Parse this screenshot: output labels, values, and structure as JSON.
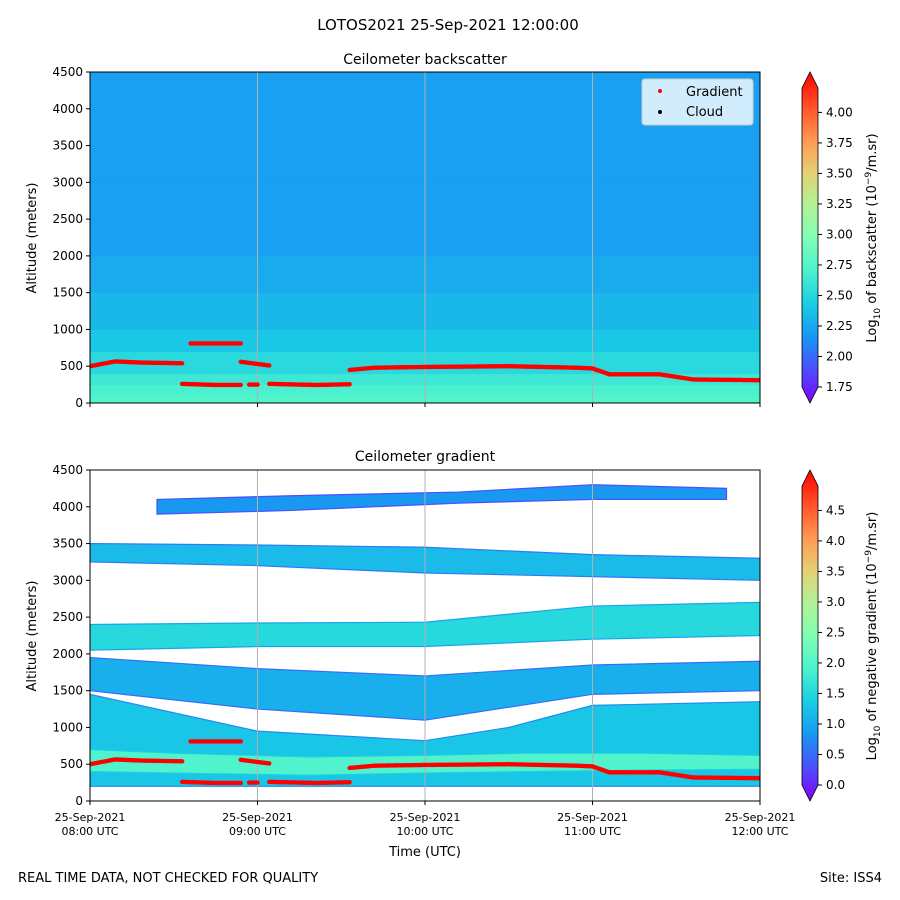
{
  "figure": {
    "suptitle": "LOTOS2021 25-Sep-2021 12:00:00",
    "footer_left": "REAL TIME DATA, NOT CHECKED FOR QUALITY",
    "footer_right": "Site: ISS4",
    "xlabel": "Time (UTC)"
  },
  "colors": {
    "rainbow": [
      "#8000ff",
      "#4c4efc",
      "#1996f3",
      "#1acee3",
      "#4cf2ce",
      "#80ffb4",
      "#b2f296",
      "#e6ce74",
      "#ff964f",
      "#ff4e27",
      "#ff0000"
    ],
    "gradient_marker": "#ff0000",
    "cloud_marker": "#000000",
    "grid": "#b0b0b0"
  },
  "chart_data": [
    {
      "type": "heatmap",
      "title": "Ceilometer backscatter",
      "ylabel": "Altitude (meters)",
      "ylim": [
        0,
        4500
      ],
      "yticks": [
        "0",
        "500",
        "1000",
        "1500",
        "2000",
        "2500",
        "3000",
        "3500",
        "4000",
        "4500"
      ],
      "xlim_hours": [
        8,
        12
      ],
      "colorbar": {
        "label": "Log10 of backscatter (10^-9/m.sr)",
        "label_main": "Log",
        "label_sub": "10",
        "label_rest": " of backscatter (10",
        "label_sup": "−9",
        "label_end": "/m.sr)",
        "range": [
          1.75,
          4.2
        ],
        "ticks": [
          "1.75",
          "2.00",
          "2.25",
          "2.50",
          "2.75",
          "3.00",
          "3.25",
          "3.50",
          "3.75",
          "4.00"
        ]
      },
      "legend": [
        {
          "label": "Gradient",
          "marker": "red-dot"
        },
        {
          "label": "Cloud",
          "marker": "black-dot"
        }
      ],
      "legend_position": "top-right",
      "profile_levels": [
        {
          "alt": 0,
          "value": 2.78
        },
        {
          "alt": 100,
          "value": 2.75
        },
        {
          "alt": 250,
          "value": 2.7
        },
        {
          "alt": 400,
          "value": 2.62
        },
        {
          "alt": 700,
          "value": 2.5
        },
        {
          "alt": 1000,
          "value": 2.42
        },
        {
          "alt": 1500,
          "value": 2.36
        },
        {
          "alt": 2000,
          "value": 2.3
        },
        {
          "alt": 3000,
          "value": 2.27
        },
        {
          "alt": 4500,
          "value": 2.3
        }
      ],
      "gradient_segments": [
        {
          "x": [
            8.0,
            8.15,
            8.3,
            8.55
          ],
          "y": [
            500,
            565,
            550,
            540
          ]
        },
        {
          "x": [
            8.6,
            8.9
          ],
          "y": [
            810,
            810
          ]
        },
        {
          "x": [
            8.55,
            8.75,
            8.9
          ],
          "y": [
            260,
            245,
            245
          ]
        },
        {
          "x": [
            8.95,
            9.0
          ],
          "y": [
            250,
            250
          ]
        },
        {
          "x": [
            8.9,
            9.07
          ],
          "y": [
            560,
            510
          ]
        },
        {
          "x": [
            9.07,
            9.35,
            9.55
          ],
          "y": [
            260,
            245,
            255
          ]
        },
        {
          "x": [
            9.55,
            9.7,
            10.0,
            10.5,
            10.9,
            11.0,
            11.1,
            11.4,
            11.6,
            12.0
          ],
          "y": [
            450,
            480,
            490,
            500,
            480,
            470,
            390,
            390,
            320,
            310
          ]
        }
      ]
    },
    {
      "type": "heatmap",
      "title": "Ceilometer gradient",
      "ylabel": "Altitude (meters)",
      "ylim": [
        0,
        4500
      ],
      "yticks": [
        "0",
        "500",
        "1000",
        "1500",
        "2000",
        "2500",
        "3000",
        "3500",
        "4000",
        "4500"
      ],
      "xlim_hours": [
        8,
        12
      ],
      "xticks": [
        {
          "line1": "25-Sep-2021",
          "line2": "08:00 UTC",
          "hour": 8
        },
        {
          "line1": "25-Sep-2021",
          "line2": "09:00 UTC",
          "hour": 9
        },
        {
          "line1": "25-Sep-2021",
          "line2": "10:00 UTC",
          "hour": 10
        },
        {
          "line1": "25-Sep-2021",
          "line2": "11:00 UTC",
          "hour": 11
        },
        {
          "line1": "25-Sep-2021",
          "line2": "12:00 UTC",
          "hour": 12
        }
      ],
      "colorbar": {
        "label": "Log10 of negative gradient (10^-9/m.sr)",
        "label_main": "Log",
        "label_sub": "10",
        "label_rest": " of negative gradient (10",
        "label_sup": "−9",
        "label_end": "/m.sr)",
        "range": [
          0.0,
          4.9
        ],
        "ticks": [
          "0.0",
          "0.5",
          "1.0",
          "1.5",
          "2.0",
          "2.5",
          "3.0",
          "3.5",
          "4.0",
          "4.5"
        ]
      },
      "bands": [
        {
          "x": [
            8.0,
            9.0,
            10.0,
            10.5,
            11.0,
            12.0
          ],
          "bottom": [
            200,
            200,
            200,
            200,
            200,
            200
          ],
          "top": [
            1450,
            950,
            820,
            1000,
            1300,
            1350
          ],
          "value": 1.4
        },
        {
          "x": [
            8.0,
            9.0,
            10.0,
            11.0,
            12.0
          ],
          "bottom": [
            1500,
            1250,
            1100,
            1450,
            1500
          ],
          "top": [
            1950,
            1800,
            1700,
            1850,
            1900
          ],
          "value": 1.2
        },
        {
          "x": [
            8.0,
            9.0,
            10.0,
            11.0,
            12.0
          ],
          "bottom": [
            2050,
            2100,
            2100,
            2200,
            2250
          ],
          "top": [
            2400,
            2420,
            2430,
            2650,
            2700
          ],
          "value": 1.6
        },
        {
          "x": [
            8.0,
            9.0,
            10.0,
            11.0,
            12.0
          ],
          "bottom": [
            3250,
            3200,
            3100,
            3050,
            3000
          ],
          "top": [
            3500,
            3480,
            3450,
            3350,
            3300
          ],
          "value": 1.3
        },
        {
          "x": [
            8.4,
            9.2,
            10.2,
            11.0,
            11.8
          ],
          "bottom": [
            3900,
            3950,
            4050,
            4100,
            4100
          ],
          "top": [
            4100,
            4150,
            4200,
            4300,
            4250
          ],
          "value": 1.0
        },
        {
          "x": [
            8.0,
            8.5,
            9.3,
            10.0,
            10.6,
            11.3,
            12.0
          ],
          "bottom": [
            400,
            380,
            350,
            380,
            400,
            420,
            430
          ],
          "top": [
            700,
            650,
            600,
            620,
            650,
            650,
            620
          ],
          "value": 2.0
        }
      ],
      "gradient_segments": [
        {
          "x": [
            8.0,
            8.15,
            8.3,
            8.55
          ],
          "y": [
            500,
            565,
            550,
            540
          ]
        },
        {
          "x": [
            8.6,
            8.9
          ],
          "y": [
            810,
            810
          ]
        },
        {
          "x": [
            8.55,
            8.75,
            8.9
          ],
          "y": [
            260,
            245,
            245
          ]
        },
        {
          "x": [
            8.95,
            9.0
          ],
          "y": [
            250,
            250
          ]
        },
        {
          "x": [
            8.9,
            9.07
          ],
          "y": [
            560,
            510
          ]
        },
        {
          "x": [
            9.07,
            9.35,
            9.55
          ],
          "y": [
            260,
            245,
            255
          ]
        },
        {
          "x": [
            9.55,
            9.7,
            10.0,
            10.5,
            10.9,
            11.0,
            11.1,
            11.4,
            11.6,
            12.0
          ],
          "y": [
            450,
            480,
            490,
            500,
            480,
            470,
            390,
            390,
            320,
            310
          ]
        }
      ]
    }
  ]
}
